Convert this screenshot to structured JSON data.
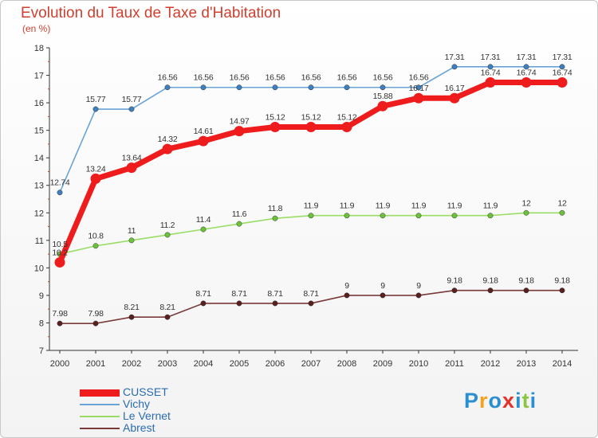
{
  "title": "Evolution du Taux de Taxe d'Habitation",
  "unit_label": "(en %)",
  "logo": {
    "letters": [
      "P",
      "r",
      "o",
      "x",
      "i",
      "t",
      "i"
    ],
    "colors": [
      "#2b8fcf",
      "#f7a21b",
      "#2b8fcf",
      "#e4322b",
      "#2b8fcf",
      "#8cc63f",
      "#2b8fcf"
    ]
  },
  "chart_data": {
    "type": "line",
    "title": "Evolution du Taux de Taxe d'Habitation",
    "ylabel": "(en %)",
    "xlabel": "",
    "ylim": [
      7,
      18
    ],
    "yticks": [
      7,
      8,
      9,
      10,
      11,
      12,
      13,
      14,
      15,
      16,
      17,
      18
    ],
    "grid": false,
    "legend_position": "bottom-left",
    "x": [
      "2000",
      "2001",
      "2002",
      "2003",
      "2004",
      "2005",
      "2006",
      "2007",
      "2008",
      "2009",
      "2010",
      "2011",
      "2012",
      "2013",
      "2014"
    ],
    "series": [
      {
        "name": "CUSSET",
        "color": "#ee1c1c",
        "marker": "#ee1c1c",
        "values": [
          10.2,
          13.24,
          13.64,
          14.32,
          14.61,
          14.97,
          15.12,
          15.12,
          15.12,
          15.88,
          16.17,
          16.17,
          16.74,
          16.74,
          16.74
        ],
        "labels": [
          "10.2",
          "13.24",
          "13.64",
          "14.32",
          "14.61",
          "14.97",
          "15.12",
          "15.12",
          "15.12",
          "15.88",
          "16.17",
          "16.17",
          "16.74",
          "16.74",
          "16.74"
        ]
      },
      {
        "name": "Vichy",
        "color": "#6aa3d5",
        "marker": "#3d7fbf",
        "values": [
          12.74,
          15.77,
          15.77,
          16.56,
          16.56,
          16.56,
          16.56,
          16.56,
          16.56,
          16.56,
          16.56,
          17.31,
          17.31,
          17.31,
          17.31
        ],
        "labels": [
          "12.74",
          "15.77",
          "15.77",
          "16.56",
          "16.56",
          "16.56",
          "16.56",
          "16.56",
          "16.56",
          "16.56",
          "16.56",
          "17.31",
          "17.31",
          "17.31",
          "17.31"
        ]
      },
      {
        "name": "Le Vernet",
        "color": "#99dd66",
        "marker": "#6cc23a",
        "values": [
          10.5,
          10.8,
          11,
          11.2,
          11.4,
          11.6,
          11.8,
          11.9,
          11.9,
          11.9,
          11.9,
          11.9,
          11.9,
          12,
          12
        ],
        "labels": [
          "10.5",
          "10.8",
          "11",
          "11.2",
          "11.4",
          "11.6",
          "11.8",
          "11.9",
          "11.9",
          "11.9",
          "11.9",
          "11.9",
          "11.9",
          "12",
          "12"
        ]
      },
      {
        "name": "Abrest",
        "color": "#7a3a3a",
        "marker": "#5a1f1f",
        "values": [
          7.98,
          7.98,
          8.21,
          8.21,
          8.71,
          8.71,
          8.71,
          8.71,
          9,
          9,
          9,
          9.18,
          9.18,
          9.18,
          9.18
        ],
        "labels": [
          "7.98",
          "7.98",
          "8.21",
          "8.21",
          "8.71",
          "8.71",
          "8.71",
          "8.71",
          "9",
          "9",
          "9",
          "9.18",
          "9.18",
          "9.18",
          "9.18"
        ]
      }
    ]
  }
}
